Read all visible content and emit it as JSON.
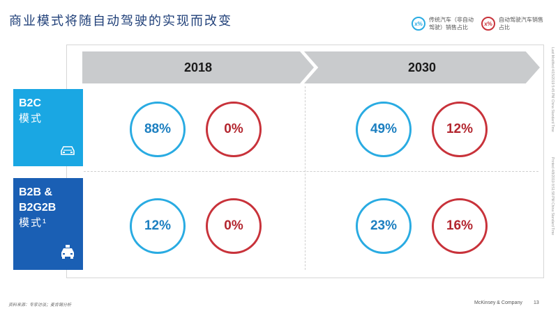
{
  "title": "商业模式将随自动驾驶的实现而改变",
  "legend": [
    {
      "symbol": "x%",
      "text": "传统汽车（非自动驾驶）销售占比",
      "color": "#29abe2"
    },
    {
      "symbol": "x%",
      "text": "自动驾驶汽车销售占比",
      "color": "#c8323a"
    }
  ],
  "years": [
    "2018",
    "2030"
  ],
  "rows": [
    {
      "label_lines": [
        "B2C"
      ],
      "sub": "模式",
      "icon": "car-icon",
      "values": {
        "2018": {
          "traditional": "88%",
          "autonomous": "0%"
        },
        "2030": {
          "traditional": "49%",
          "autonomous": "12%"
        }
      }
    },
    {
      "label_lines": [
        "B2B &",
        "B2G2B"
      ],
      "sub": "模式¹",
      "icon": "taxi-icon",
      "values": {
        "2018": {
          "traditional": "12%",
          "autonomous": "0%"
        },
        "2030": {
          "traditional": "23%",
          "autonomous": "16%"
        }
      }
    }
  ],
  "footer": {
    "source": "资料来源：专家访谈；麦肯锡分析",
    "company": "McKinsey & Company",
    "page": "13"
  },
  "side_text": [
    "Last Modified 4/15/2019 5:45 PM China Standard Time",
    "Printed 4/8/2019 8:51:58 PM China Standard Time"
  ]
}
